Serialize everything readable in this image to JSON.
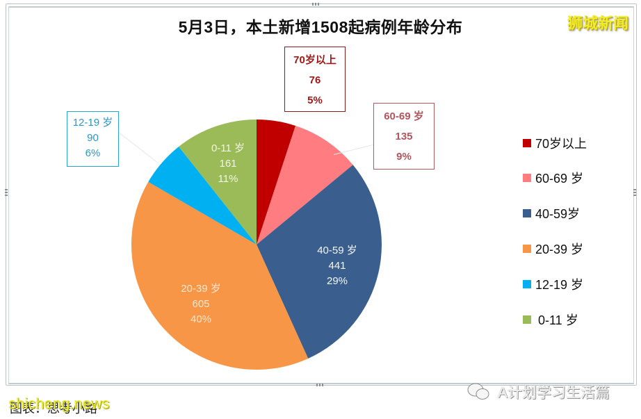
{
  "header": {
    "title": "5月3日，本土新增1508起病例年龄分布",
    "brand": "狮城新闻"
  },
  "callouts": {
    "c70": {
      "label": "70岁以上",
      "count": "76",
      "pct": "5%"
    },
    "c60": {
      "label": "60-69 岁",
      "count": "135",
      "pct": "9%"
    },
    "c12": {
      "label": "12-19 岁",
      "count": "90",
      "pct": "6%"
    }
  },
  "slice_labels": {
    "s40": {
      "label": "40-59 岁",
      "count": "441",
      "pct": "29%"
    },
    "s20": {
      "label": "20-39 岁",
      "count": "605",
      "pct": "40%"
    },
    "s0": {
      "label": "0-11 岁",
      "count": "161",
      "pct": "11%"
    }
  },
  "legend": [
    {
      "label": "70岁以上",
      "color": "#c00000"
    },
    {
      "label": "60-69 岁",
      "color": "#ff7c80"
    },
    {
      "label": "40-59岁",
      "color": "#3a5f8f"
    },
    {
      "label": "20-39 岁",
      "color": "#f79646"
    },
    {
      "label": "12-19 岁",
      "color": "#00b0f0"
    },
    {
      "label": "0-11 岁",
      "color": "#9bbb59"
    }
  ],
  "footer": {
    "watermark": "shicheng.news",
    "caption": "图表：思考小路",
    "wechat": "A计划学习生活篇"
  },
  "chart_data": {
    "type": "pie",
    "title": "5月3日，本土新增1508起病例年龄分布",
    "total": 1508,
    "categories": [
      "70岁以上",
      "60-69 岁",
      "40-59岁",
      "20-39 岁",
      "12-19 岁",
      "0-11 岁"
    ],
    "values": [
      76,
      135,
      441,
      605,
      90,
      161
    ],
    "percentages": [
      "5%",
      "9%",
      "29%",
      "40%",
      "6%",
      "11%"
    ],
    "colors": [
      "#c00000",
      "#ff7c80",
      "#3a5f8f",
      "#f79646",
      "#00b0f0",
      "#9bbb59"
    ],
    "start_angle": "12 o'clock, clockwise",
    "legend_position": "right"
  }
}
